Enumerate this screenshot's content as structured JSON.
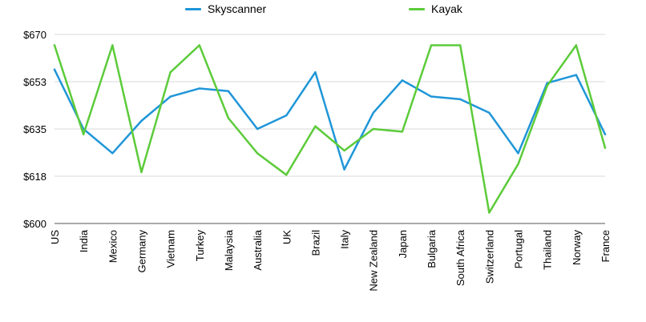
{
  "chart_data": {
    "type": "line",
    "categories": [
      "US",
      "India",
      "Mexico",
      "Germany",
      "Vietnam",
      "Turkey",
      "Malaysia",
      "Australia",
      "UK",
      "Brazil",
      "Italy",
      "New Zealand",
      "Japan",
      "Bulgaria",
      "South Africa",
      "Switzerland",
      "Portugal",
      "Thailand",
      "Norway",
      "France"
    ],
    "series": [
      {
        "name": "Skyscanner",
        "color": "#1f96d8",
        "values": [
          657,
          635,
          626,
          638,
          647,
          650,
          649,
          635,
          640,
          656,
          620,
          641,
          653,
          647,
          646,
          641,
          626,
          652,
          655,
          633
        ]
      },
      {
        "name": "Kayak",
        "color": "#5ccb3a",
        "values": [
          666,
          633,
          666,
          619,
          656,
          666,
          639,
          626,
          618,
          636,
          627,
          635,
          634,
          666,
          666,
          604,
          622,
          651,
          666,
          628
        ]
      }
    ],
    "yticks": [
      "$600",
      "$618",
      "$635",
      "$653",
      "$670"
    ],
    "ylim": [
      600,
      670
    ],
    "grid": true,
    "legend": "top"
  }
}
